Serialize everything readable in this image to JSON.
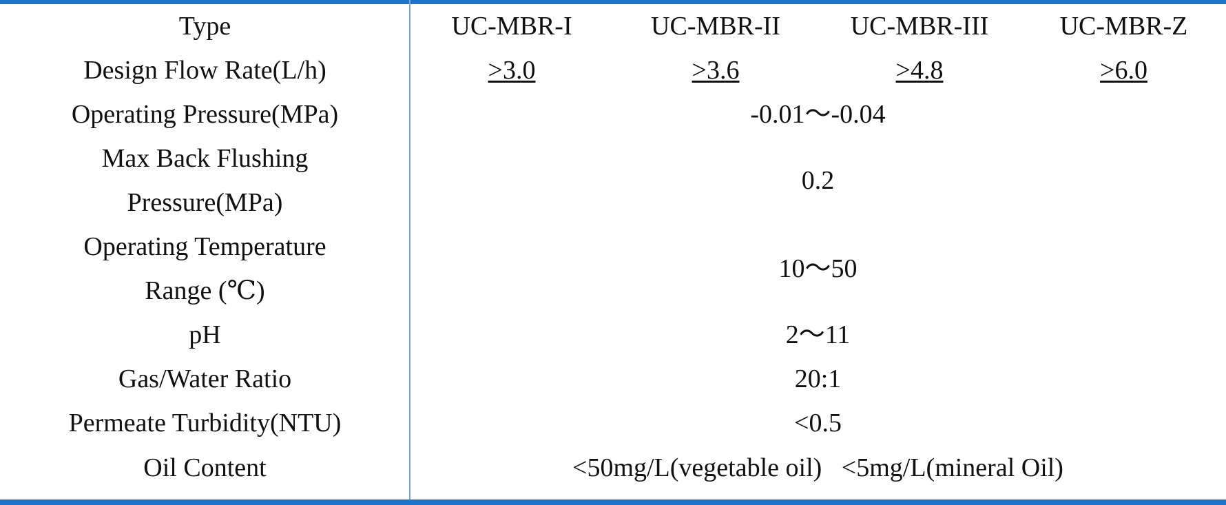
{
  "header": {
    "label": "Type",
    "models": [
      "UC-MBR-I",
      "UC-MBR-II",
      "UC-MBR-III",
      "UC-MBR-Z"
    ]
  },
  "rows": [
    {
      "label": "Design Flow Rate(L/h)",
      "values": [
        ">3.0",
        ">3.6",
        ">4.8",
        ">6.0"
      ]
    },
    {
      "label": "Operating Pressure(MPa)",
      "value": "-0.01～-0.04"
    },
    {
      "label_line1": "Max Back Flushing",
      "label_line2": "Pressure(MPa)",
      "value": "0.2"
    },
    {
      "label_line1": "Operating Temperature",
      "label_line2": "Range (℃)",
      "value": "10～50"
    },
    {
      "label": "pH",
      "value": "2～11"
    },
    {
      "label": "Gas/Water Ratio",
      "value": "20:1"
    },
    {
      "label": "Permeate Turbidity(NTU)",
      "value": "<0.5"
    },
    {
      "label": "Oil Content",
      "value": "<50mg/L(vegetable oil)   <5mg/L(mineral Oil)"
    }
  ],
  "colors": {
    "rule": "#1d74c8",
    "divider": "#7aa9d8",
    "text": "#111111"
  }
}
